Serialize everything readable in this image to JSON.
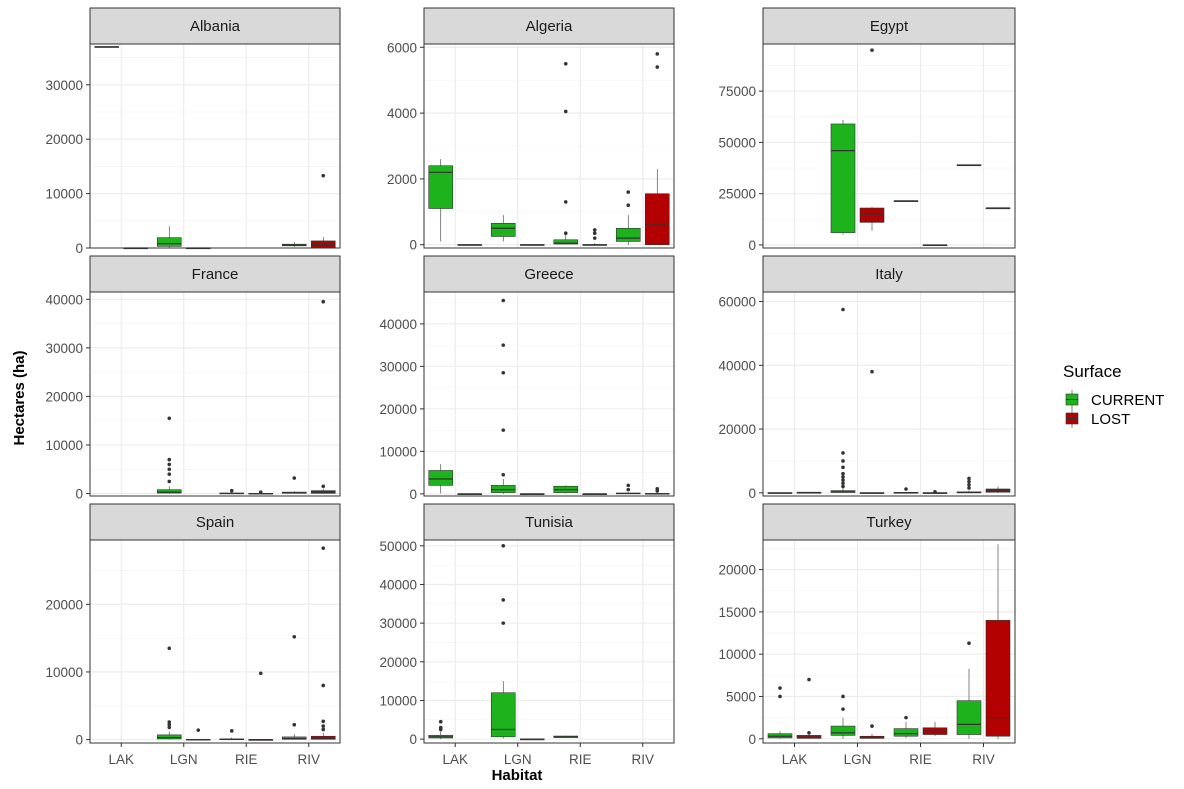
{
  "chart_data": {
    "type": "boxplot",
    "xlabel": "Habitat",
    "ylabel": "Hectares (ha)",
    "categories": [
      "LAK",
      "LGN",
      "RIE",
      "RIV"
    ],
    "grid": true,
    "legend": {
      "title": "Surface",
      "placement": "right",
      "entries": [
        {
          "name": "CURRENT",
          "color": "#1db31d"
        },
        {
          "name": "LOST",
          "color": "#b30000"
        }
      ]
    },
    "facets": [
      {
        "title": "Albania",
        "ylim": [
          0,
          37500
        ],
        "yticks": [
          0,
          10000,
          20000,
          30000
        ],
        "boxes": [
          {
            "cat": "LAK",
            "group": "CURRENT",
            "stats": [
              37000,
              37000,
              37000,
              37000,
              37000
            ],
            "outliers": []
          },
          {
            "cat": "LAK",
            "group": "LOST",
            "stats": [
              0,
              0,
              0,
              0,
              0
            ],
            "outliers": []
          },
          {
            "cat": "LGN",
            "group": "CURRENT",
            "stats": [
              0,
              300,
              800,
              1900,
              4000
            ],
            "outliers": []
          },
          {
            "cat": "LGN",
            "group": "LOST",
            "stats": [
              0,
              0,
              0,
              0,
              0
            ],
            "outliers": []
          },
          {
            "cat": "RIV",
            "group": "CURRENT",
            "stats": [
              200,
              400,
              500,
              700,
              1100
            ],
            "outliers": []
          },
          {
            "cat": "RIV",
            "group": "LOST",
            "stats": [
              0,
              0,
              600,
              1300,
              2000
            ],
            "outliers": [
              13300
            ]
          }
        ]
      },
      {
        "title": "Algeria",
        "ylim": [
          -100,
          6100
        ],
        "yticks": [
          0,
          2000,
          4000,
          6000
        ],
        "boxes": [
          {
            "cat": "LAK",
            "group": "CURRENT",
            "stats": [
              100,
              1100,
              2200,
              2400,
              2600
            ],
            "outliers": []
          },
          {
            "cat": "LAK",
            "group": "LOST",
            "stats": [
              0,
              0,
              0,
              0,
              0
            ],
            "outliers": []
          },
          {
            "cat": "LGN",
            "group": "CURRENT",
            "stats": [
              100,
              250,
              500,
              650,
              900
            ],
            "outliers": []
          },
          {
            "cat": "LGN",
            "group": "LOST",
            "stats": [
              0,
              0,
              0,
              0,
              0
            ],
            "outliers": []
          },
          {
            "cat": "RIE",
            "group": "CURRENT",
            "stats": [
              0,
              20,
              50,
              150,
              300
            ],
            "outliers": [
              350,
              1300,
              4050,
              5500
            ]
          },
          {
            "cat": "RIE",
            "group": "LOST",
            "stats": [
              0,
              0,
              0,
              0,
              50
            ],
            "outliers": [
              200,
              350,
              450
            ]
          },
          {
            "cat": "RIV",
            "group": "CURRENT",
            "stats": [
              0,
              100,
              200,
              500,
              900
            ],
            "outliers": [
              1200,
              1600
            ]
          },
          {
            "cat": "RIV",
            "group": "LOST",
            "stats": [
              0,
              0,
              600,
              1550,
              2300
            ],
            "outliers": [
              5400,
              5800
            ]
          }
        ]
      },
      {
        "title": "Egypt",
        "ylim": [
          -1500,
          98000
        ],
        "yticks": [
          0,
          25000,
          50000,
          75000
        ],
        "boxes": [
          {
            "cat": "LGN",
            "group": "CURRENT",
            "stats": [
              5000,
              6000,
              46000,
              59000,
              61000
            ],
            "outliers": []
          },
          {
            "cat": "LGN",
            "group": "LOST",
            "stats": [
              7000,
              11000,
              15000,
              18000,
              18500
            ],
            "outliers": [
              95000
            ]
          },
          {
            "cat": "RIE",
            "group": "CURRENT",
            "stats": [
              21500,
              21500,
              21500,
              21500,
              21500
            ],
            "outliers": []
          },
          {
            "cat": "RIE",
            "group": "LOST",
            "stats": [
              0,
              0,
              0,
              0,
              0
            ],
            "outliers": []
          },
          {
            "cat": "RIV",
            "group": "CURRENT",
            "stats": [
              39000,
              39000,
              39000,
              39000,
              39000
            ],
            "outliers": []
          },
          {
            "cat": "RIV",
            "group": "LOST",
            "stats": [
              18000,
              18000,
              18000,
              18000,
              18000
            ],
            "outliers": []
          }
        ]
      },
      {
        "title": "France",
        "ylim": [
          -500,
          41500
        ],
        "yticks": [
          0,
          10000,
          20000,
          30000,
          40000
        ],
        "boxes": [
          {
            "cat": "LGN",
            "group": "CURRENT",
            "stats": [
              0,
              100,
              300,
              800,
              1500
            ],
            "outliers": [
              2500,
              4000,
              5000,
              6000,
              7000,
              15500
            ]
          },
          {
            "cat": "RIE",
            "group": "CURRENT",
            "stats": [
              0,
              0,
              50,
              100,
              300
            ],
            "outliers": [
              600
            ]
          },
          {
            "cat": "RIE",
            "group": "LOST",
            "stats": [
              0,
              0,
              0,
              50,
              100
            ],
            "outliers": [
              300
            ]
          },
          {
            "cat": "RIV",
            "group": "CURRENT",
            "stats": [
              0,
              50,
              150,
              300,
              500
            ],
            "outliers": [
              3200
            ]
          },
          {
            "cat": "RIV",
            "group": "LOST",
            "stats": [
              0,
              50,
              200,
              600,
              1000
            ],
            "outliers": [
              1500,
              39500
            ]
          }
        ]
      },
      {
        "title": "Greece",
        "ylim": [
          -500,
          47500
        ],
        "yticks": [
          0,
          10000,
          20000,
          30000,
          40000
        ],
        "boxes": [
          {
            "cat": "LAK",
            "group": "CURRENT",
            "stats": [
              100,
              2000,
              3500,
              5500,
              7000
            ],
            "outliers": []
          },
          {
            "cat": "LAK",
            "group": "LOST",
            "stats": [
              0,
              0,
              0,
              0,
              0
            ],
            "outliers": []
          },
          {
            "cat": "LGN",
            "group": "CURRENT",
            "stats": [
              0,
              300,
              1000,
              2000,
              3500
            ],
            "outliers": [
              4500,
              15000,
              28500,
              35000,
              45500
            ]
          },
          {
            "cat": "LGN",
            "group": "LOST",
            "stats": [
              0,
              0,
              0,
              0,
              0
            ],
            "outliers": []
          },
          {
            "cat": "RIE",
            "group": "CURRENT",
            "stats": [
              100,
              300,
              1000,
              1800,
              2000
            ],
            "outliers": []
          },
          {
            "cat": "RIE",
            "group": "LOST",
            "stats": [
              0,
              0,
              0,
              0,
              100
            ],
            "outliers": []
          },
          {
            "cat": "RIV",
            "group": "CURRENT",
            "stats": [
              0,
              0,
              100,
              200,
              400
            ],
            "outliers": [
              1000,
              2000
            ]
          },
          {
            "cat": "RIV",
            "group": "LOST",
            "stats": [
              0,
              0,
              50,
              100,
              300
            ],
            "outliers": [
              700,
              1200
            ]
          }
        ]
      },
      {
        "title": "Italy",
        "ylim": [
          -1000,
          63000
        ],
        "yticks": [
          0,
          20000,
          40000,
          60000
        ],
        "boxes": [
          {
            "cat": "LAK",
            "group": "CURRENT",
            "stats": [
              0,
              0,
              0,
              0,
              0
            ],
            "outliers": []
          },
          {
            "cat": "LAK",
            "group": "LOST",
            "stats": [
              100,
              100,
              100,
              100,
              100
            ],
            "outliers": []
          },
          {
            "cat": "LGN",
            "group": "CURRENT",
            "stats": [
              0,
              100,
              300,
              700,
              1500
            ],
            "outliers": [
              2000,
              3000,
              4000,
              5000,
              6000,
              8000,
              10000,
              12500,
              57500
            ]
          },
          {
            "cat": "LGN",
            "group": "LOST",
            "stats": [
              0,
              0,
              0,
              0,
              50
            ],
            "outliers": [
              38000
            ]
          },
          {
            "cat": "RIE",
            "group": "CURRENT",
            "stats": [
              0,
              0,
              50,
              100,
              200
            ],
            "outliers": [
              1200
            ]
          },
          {
            "cat": "RIE",
            "group": "LOST",
            "stats": [
              0,
              0,
              0,
              0,
              50
            ],
            "outliers": [
              300
            ]
          },
          {
            "cat": "RIV",
            "group": "CURRENT",
            "stats": [
              0,
              0,
              100,
              300,
              700
            ],
            "outliers": [
              1500,
              2500,
              3500,
              4500
            ]
          },
          {
            "cat": "RIV",
            "group": "LOST",
            "stats": [
              0,
              200,
              600,
              1200,
              2000
            ],
            "outliers": []
          }
        ]
      },
      {
        "title": "Spain",
        "ylim": [
          -500,
          29500
        ],
        "yticks": [
          0,
          10000,
          20000
        ],
        "boxes": [
          {
            "cat": "LGN",
            "group": "CURRENT",
            "stats": [
              0,
              100,
              300,
              700,
              1200
            ],
            "outliers": [
              1800,
              2200,
              2600,
              13500
            ]
          },
          {
            "cat": "LGN",
            "group": "LOST",
            "stats": [
              0,
              0,
              0,
              50,
              100
            ],
            "outliers": [
              1400
            ]
          },
          {
            "cat": "RIE",
            "group": "CURRENT",
            "stats": [
              0,
              0,
              50,
              100,
              300
            ],
            "outliers": [
              1300
            ]
          },
          {
            "cat": "RIE",
            "group": "LOST",
            "stats": [
              0,
              0,
              0,
              0,
              50
            ],
            "outliers": [
              9800
            ]
          },
          {
            "cat": "RIV",
            "group": "CURRENT",
            "stats": [
              0,
              50,
              150,
              400,
              800
            ],
            "outliers": [
              2200,
              15200
            ]
          },
          {
            "cat": "RIV",
            "group": "LOST",
            "stats": [
              0,
              50,
              200,
              500,
              1000
            ],
            "outliers": [
              1500,
              2000,
              2700,
              8000,
              28300
            ]
          }
        ]
      },
      {
        "title": "Tunisia",
        "ylim": [
          -1000,
          51500
        ],
        "yticks": [
          0,
          10000,
          20000,
          30000,
          40000,
          50000
        ],
        "boxes": [
          {
            "cat": "LAK",
            "group": "CURRENT",
            "stats": [
              0,
              300,
              600,
              1000,
              2000
            ],
            "outliers": [
              2500,
              3000,
              4500
            ]
          },
          {
            "cat": "LGN",
            "group": "CURRENT",
            "stats": [
              200,
              600,
              2500,
              12000,
              15000
            ],
            "outliers": [
              30000,
              36000,
              50000
            ]
          },
          {
            "cat": "LGN",
            "group": "LOST",
            "stats": [
              0,
              0,
              0,
              0,
              0
            ],
            "outliers": []
          },
          {
            "cat": "RIE",
            "group": "CURRENT",
            "stats": [
              300,
              400,
              600,
              800,
              900
            ],
            "outliers": []
          }
        ]
      },
      {
        "title": "Turkey",
        "ylim": [
          -500,
          23500
        ],
        "yticks": [
          0,
          5000,
          10000,
          15000,
          20000
        ],
        "boxes": [
          {
            "cat": "LAK",
            "group": "CURRENT",
            "stats": [
              0,
              100,
              300,
              600,
              900
            ],
            "outliers": [
              5000,
              6000
            ]
          },
          {
            "cat": "LAK",
            "group": "LOST",
            "stats": [
              0,
              50,
              200,
              400,
              700
            ],
            "outliers": [
              700,
              7000
            ]
          },
          {
            "cat": "LGN",
            "group": "CURRENT",
            "stats": [
              0,
              400,
              700,
              1500,
              2500
            ],
            "outliers": [
              3500,
              5000
            ]
          },
          {
            "cat": "LGN",
            "group": "LOST",
            "stats": [
              0,
              50,
              150,
              300,
              600
            ],
            "outliers": [
              1500
            ]
          },
          {
            "cat": "RIE",
            "group": "CURRENT",
            "stats": [
              100,
              300,
              600,
              1200,
              2000
            ],
            "outliers": [
              2500
            ]
          },
          {
            "cat": "RIE",
            "group": "LOST",
            "stats": [
              300,
              500,
              900,
              1300,
              2000
            ],
            "outliers": []
          },
          {
            "cat": "RIV",
            "group": "CURRENT",
            "stats": [
              0,
              500,
              1700,
              4500,
              8300
            ],
            "outliers": [
              11300
            ]
          },
          {
            "cat": "RIV",
            "group": "LOST",
            "stats": [
              0,
              300,
              2500,
              14000,
              23000
            ],
            "outliers": []
          }
        ]
      }
    ]
  }
}
